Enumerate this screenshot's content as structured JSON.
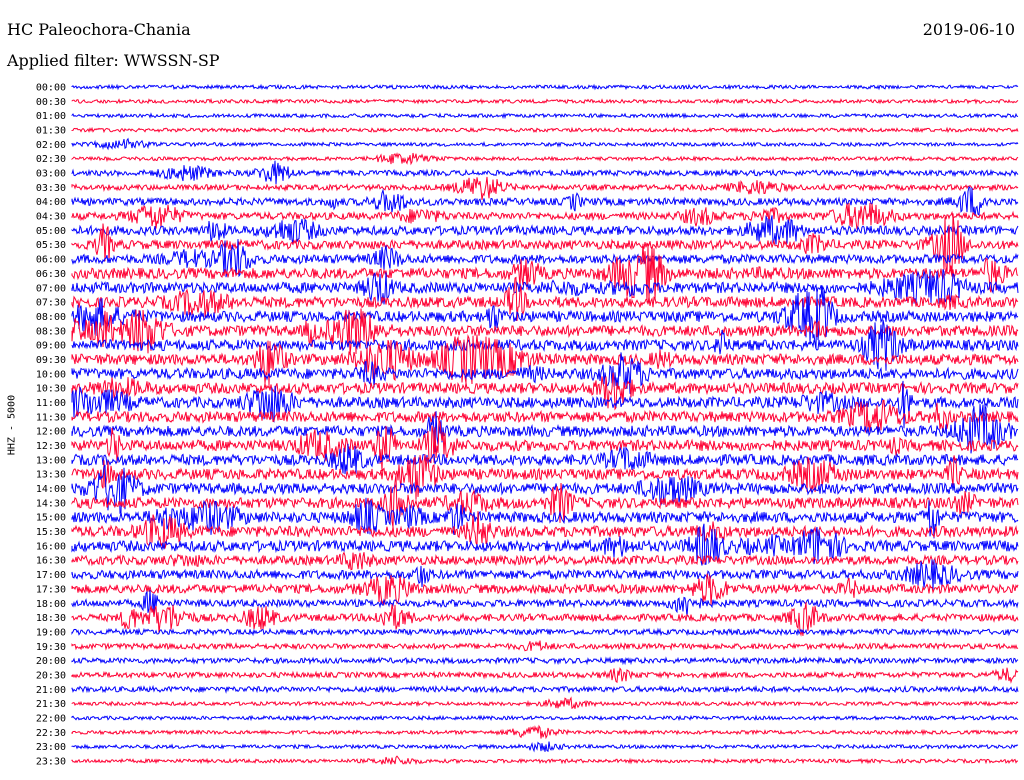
{
  "header": {
    "station": "HC Paleochora-Chania",
    "filter": "Applied filter: WWSSN-SP",
    "date": "2019-06-10"
  },
  "chart_data": {
    "type": "line",
    "title": "HC Paleochora-Chania",
    "subtitle": "Applied filter: WWSSN-SP",
    "date": "2019-06-10",
    "ylabel": "HHZ - 5000",
    "trace_labels": [
      "00:00",
      "00:30",
      "01:00",
      "01:30",
      "02:00",
      "02:30",
      "03:00",
      "03:30",
      "04:00",
      "04:30",
      "05:00",
      "05:30",
      "06:00",
      "06:30",
      "07:00",
      "07:30",
      "08:00",
      "08:30",
      "09:00",
      "09:30",
      "10:00",
      "10:30",
      "11:00",
      "11:30",
      "12:00",
      "12:30",
      "13:00",
      "13:30",
      "14:00",
      "14:30",
      "15:00",
      "15:30",
      "16:00",
      "16:30",
      "17:00",
      "17:30",
      "18:00",
      "18:30",
      "19:00",
      "19:30",
      "20:00",
      "20:30",
      "21:00",
      "21:30",
      "22:00",
      "22:30",
      "23:00",
      "23:30"
    ],
    "trace_colors": [
      "#0000ff",
      "#ff0033"
    ],
    "activity": [
      1,
      1,
      1,
      1,
      1,
      1,
      2,
      2,
      3,
      3,
      4,
      4,
      4,
      5,
      5,
      5,
      5,
      5,
      5,
      5,
      5,
      5,
      5,
      5,
      5,
      5,
      5,
      5,
      5,
      5,
      5,
      5,
      5,
      4,
      4,
      4,
      3,
      3,
      2,
      2,
      2,
      2,
      2,
      1,
      1,
      1,
      1,
      1
    ],
    "grid": false
  }
}
